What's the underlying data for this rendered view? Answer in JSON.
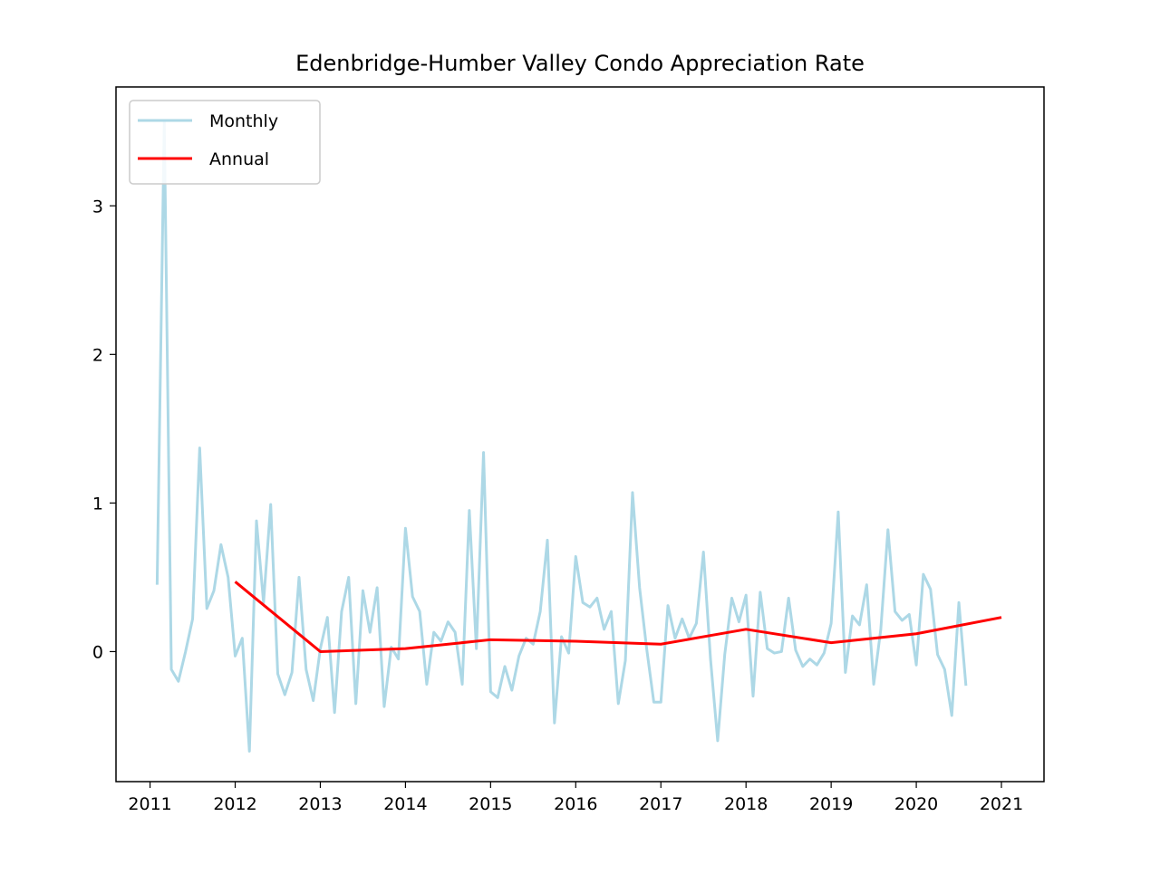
{
  "chart_data": {
    "type": "line",
    "title": "Edenbridge-Humber Valley Condo Appreciation Rate",
    "xlabel": "",
    "ylabel": "",
    "xlim": [
      2010.6,
      2021.5
    ],
    "ylim": [
      -0.875,
      3.8
    ],
    "x_ticks": [
      2011,
      2012,
      2013,
      2014,
      2015,
      2016,
      2017,
      2018,
      2019,
      2020,
      2021
    ],
    "y_ticks": [
      0,
      1,
      2,
      3
    ],
    "grid": false,
    "legend_position": "top-left",
    "series": [
      {
        "name": "Monthly",
        "color": "#add8e6",
        "points": [
          [
            2011.083,
            0.45
          ],
          [
            2011.167,
            3.57
          ],
          [
            2011.25,
            -0.12
          ],
          [
            2011.333,
            -0.2
          ],
          [
            2011.417,
            0.0
          ],
          [
            2011.5,
            0.22
          ],
          [
            2011.583,
            1.37
          ],
          [
            2011.667,
            0.29
          ],
          [
            2011.75,
            0.41
          ],
          [
            2011.833,
            0.72
          ],
          [
            2011.917,
            0.5
          ],
          [
            2012.0,
            -0.03
          ],
          [
            2012.083,
            0.09
          ],
          [
            2012.167,
            -0.67
          ],
          [
            2012.25,
            0.88
          ],
          [
            2012.333,
            0.33
          ],
          [
            2012.417,
            0.99
          ],
          [
            2012.5,
            -0.15
          ],
          [
            2012.583,
            -0.29
          ],
          [
            2012.667,
            -0.14
          ],
          [
            2012.75,
            0.5
          ],
          [
            2012.833,
            -0.12
          ],
          [
            2012.917,
            -0.33
          ],
          [
            2013.0,
            0.02
          ],
          [
            2013.083,
            0.23
          ],
          [
            2013.167,
            -0.41
          ],
          [
            2013.25,
            0.27
          ],
          [
            2013.333,
            0.5
          ],
          [
            2013.417,
            -0.35
          ],
          [
            2013.5,
            0.41
          ],
          [
            2013.583,
            0.13
          ],
          [
            2013.667,
            0.43
          ],
          [
            2013.75,
            -0.37
          ],
          [
            2013.833,
            0.03
          ],
          [
            2013.917,
            -0.05
          ],
          [
            2014.0,
            0.83
          ],
          [
            2014.083,
            0.37
          ],
          [
            2014.167,
            0.27
          ],
          [
            2014.25,
            -0.22
          ],
          [
            2014.333,
            0.13
          ],
          [
            2014.417,
            0.07
          ],
          [
            2014.5,
            0.2
          ],
          [
            2014.583,
            0.13
          ],
          [
            2014.667,
            -0.22
          ],
          [
            2014.75,
            0.95
          ],
          [
            2014.833,
            0.02
          ],
          [
            2014.917,
            1.34
          ],
          [
            2015.0,
            -0.27
          ],
          [
            2015.083,
            -0.31
          ],
          [
            2015.167,
            -0.1
          ],
          [
            2015.25,
            -0.26
          ],
          [
            2015.333,
            -0.03
          ],
          [
            2015.417,
            0.09
          ],
          [
            2015.5,
            0.05
          ],
          [
            2015.583,
            0.27
          ],
          [
            2015.667,
            0.75
          ],
          [
            2015.75,
            -0.48
          ],
          [
            2015.833,
            0.1
          ],
          [
            2015.917,
            -0.01
          ],
          [
            2016.0,
            0.64
          ],
          [
            2016.083,
            0.33
          ],
          [
            2016.167,
            0.3
          ],
          [
            2016.25,
            0.36
          ],
          [
            2016.333,
            0.15
          ],
          [
            2016.417,
            0.27
          ],
          [
            2016.5,
            -0.35
          ],
          [
            2016.583,
            -0.06
          ],
          [
            2016.667,
            1.07
          ],
          [
            2016.75,
            0.43
          ],
          [
            2016.833,
            0.02
          ],
          [
            2016.917,
            -0.34
          ],
          [
            2017.0,
            -0.34
          ],
          [
            2017.083,
            0.31
          ],
          [
            2017.167,
            0.09
          ],
          [
            2017.25,
            0.22
          ],
          [
            2017.333,
            0.09
          ],
          [
            2017.417,
            0.19
          ],
          [
            2017.5,
            0.67
          ],
          [
            2017.583,
            -0.05
          ],
          [
            2017.667,
            -0.6
          ],
          [
            2017.75,
            -0.02
          ],
          [
            2017.833,
            0.36
          ],
          [
            2017.917,
            0.2
          ],
          [
            2018.0,
            0.38
          ],
          [
            2018.083,
            -0.3
          ],
          [
            2018.167,
            0.4
          ],
          [
            2018.25,
            0.02
          ],
          [
            2018.333,
            -0.01
          ],
          [
            2018.417,
            0.0
          ],
          [
            2018.5,
            0.36
          ],
          [
            2018.583,
            0.01
          ],
          [
            2018.667,
            -0.1
          ],
          [
            2018.75,
            -0.05
          ],
          [
            2018.833,
            -0.09
          ],
          [
            2018.917,
            -0.01
          ],
          [
            2019.0,
            0.19
          ],
          [
            2019.083,
            0.94
          ],
          [
            2019.167,
            -0.14
          ],
          [
            2019.25,
            0.24
          ],
          [
            2019.333,
            0.18
          ],
          [
            2019.417,
            0.45
          ],
          [
            2019.5,
            -0.22
          ],
          [
            2019.583,
            0.15
          ],
          [
            2019.667,
            0.82
          ],
          [
            2019.75,
            0.27
          ],
          [
            2019.833,
            0.21
          ],
          [
            2019.917,
            0.25
          ],
          [
            2020.0,
            -0.09
          ],
          [
            2020.083,
            0.52
          ],
          [
            2020.167,
            0.42
          ],
          [
            2020.25,
            -0.02
          ],
          [
            2020.333,
            -0.12
          ],
          [
            2020.417,
            -0.43
          ],
          [
            2020.5,
            0.33
          ],
          [
            2020.583,
            -0.23
          ]
        ]
      },
      {
        "name": "Annual",
        "color": "#ff0000",
        "points": [
          [
            2012.0,
            0.47
          ],
          [
            2013.0,
            0.0
          ],
          [
            2014.0,
            0.02
          ],
          [
            2015.0,
            0.08
          ],
          [
            2016.0,
            0.07
          ],
          [
            2017.0,
            0.05
          ],
          [
            2018.0,
            0.15
          ],
          [
            2019.0,
            0.06
          ],
          [
            2020.0,
            0.12
          ],
          [
            2021.0,
            0.23
          ]
        ]
      }
    ]
  }
}
